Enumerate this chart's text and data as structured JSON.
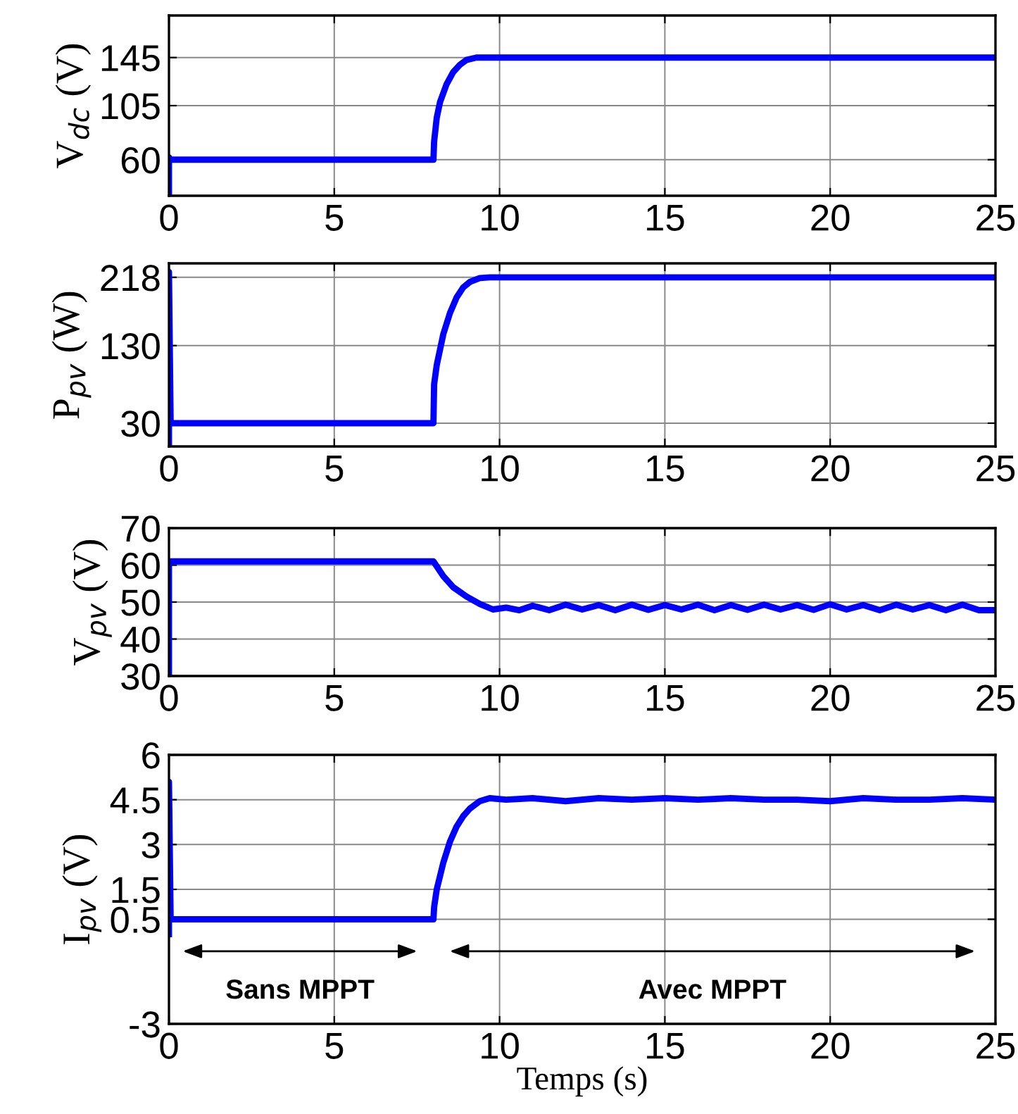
{
  "chart_data": [
    {
      "type": "line",
      "ylabel": "V$_{dc}$ (V)",
      "xlim": [
        0,
        25
      ],
      "xticks": [
        0,
        5,
        10,
        15,
        20,
        25
      ],
      "ylim": [
        30,
        180
      ],
      "yticks": [
        60,
        105,
        145
      ],
      "grid": true,
      "legend": false,
      "marker": "none",
      "line_style": "solid",
      "series": [
        {
          "color": "#0000ff",
          "x": [
            0,
            0,
            0.05,
            8.0,
            8.02,
            8.1,
            8.2,
            8.4,
            8.6,
            8.8,
            9.0,
            9.3,
            9.6,
            25
          ],
          "values": [
            30,
            62,
            60,
            60,
            75,
            95,
            108,
            123,
            133,
            139,
            143,
            145,
            145,
            145
          ]
        }
      ]
    },
    {
      "type": "line",
      "ylabel": "P$_{pv}$ (W)",
      "xlim": [
        0,
        25
      ],
      "xticks": [
        0,
        5,
        10,
        15,
        20,
        25
      ],
      "ylim": [
        0,
        236
      ],
      "yticks": [
        30,
        130,
        218
      ],
      "grid": true,
      "legend": false,
      "marker": "none",
      "line_style": "solid",
      "series": [
        {
          "color": "#0000ff",
          "x": [
            0,
            0,
            0.05,
            8.0,
            8.02,
            8.1,
            8.3,
            8.5,
            8.7,
            8.9,
            9.1,
            9.4,
            9.7,
            25
          ],
          "values": [
            0,
            225,
            30,
            30,
            80,
            105,
            145,
            172,
            192,
            205,
            212,
            217,
            218,
            218
          ]
        }
      ]
    },
    {
      "type": "line",
      "ylabel": "V$_{pv}$ (V)",
      "xlim": [
        0,
        25
      ],
      "xticks": [
        0,
        5,
        10,
        15,
        20,
        25
      ],
      "ylim": [
        30,
        70
      ],
      "yticks": [
        30,
        40,
        50,
        60,
        70
      ],
      "grid": true,
      "legend": false,
      "marker": "none",
      "line_style": "solid",
      "series": [
        {
          "color": "#0000ff",
          "x": [
            0,
            0,
            0.05,
            8.0,
            8.3,
            8.6,
            9.0,
            9.4,
            9.8,
            10.2,
            10.6,
            11.0,
            11.5,
            12.0,
            12.5,
            13.0,
            13.5,
            14.0,
            14.5,
            15.0,
            15.5,
            16.0,
            16.5,
            17.0,
            17.5,
            18.0,
            18.5,
            19.0,
            19.5,
            20.0,
            20.5,
            21.0,
            21.5,
            22.0,
            22.5,
            23.0,
            23.5,
            24.0,
            24.5,
            25
          ],
          "values": [
            30,
            61,
            61,
            61,
            57,
            54,
            51.5,
            49.5,
            48,
            48.5,
            47.8,
            49,
            47.8,
            49.3,
            48,
            49.2,
            47.8,
            49.3,
            47.9,
            49.2,
            48,
            49.3,
            47.8,
            49.2,
            47.9,
            49.3,
            48,
            49.2,
            47.9,
            49.4,
            48,
            49.2,
            47.8,
            49.3,
            48,
            49.2,
            47.8,
            49.3,
            47.8,
            47.8
          ]
        }
      ]
    },
    {
      "type": "line",
      "xlabel": "Temps (s)",
      "ylabel": "I$_{pv}$ (V)",
      "xlim": [
        0,
        25
      ],
      "xticks": [
        0,
        5,
        10,
        15,
        20,
        25
      ],
      "ylim": [
        -3,
        6
      ],
      "yticks": [
        -3,
        0.5,
        1.5,
        3,
        4.5,
        6
      ],
      "grid": true,
      "legend": false,
      "marker": "none",
      "line_style": "solid",
      "annotations": [
        "Sans MPPT",
        "Avec MPPT"
      ],
      "series": [
        {
          "color": "#0000ff",
          "x": [
            0,
            0,
            0.05,
            8.0,
            8.02,
            8.1,
            8.3,
            8.5,
            8.7,
            8.9,
            9.1,
            9.4,
            9.7,
            10.2,
            11,
            12,
            13,
            14,
            15,
            16,
            17,
            18,
            19,
            20,
            21,
            22,
            23,
            24,
            25
          ],
          "values": [
            0,
            5.1,
            0.5,
            0.5,
            0.9,
            1.5,
            2.4,
            3.1,
            3.6,
            3.95,
            4.2,
            4.45,
            4.55,
            4.5,
            4.55,
            4.45,
            4.55,
            4.5,
            4.55,
            4.5,
            4.55,
            4.5,
            4.5,
            4.45,
            4.55,
            4.5,
            4.5,
            4.55,
            4.5
          ]
        }
      ]
    }
  ]
}
